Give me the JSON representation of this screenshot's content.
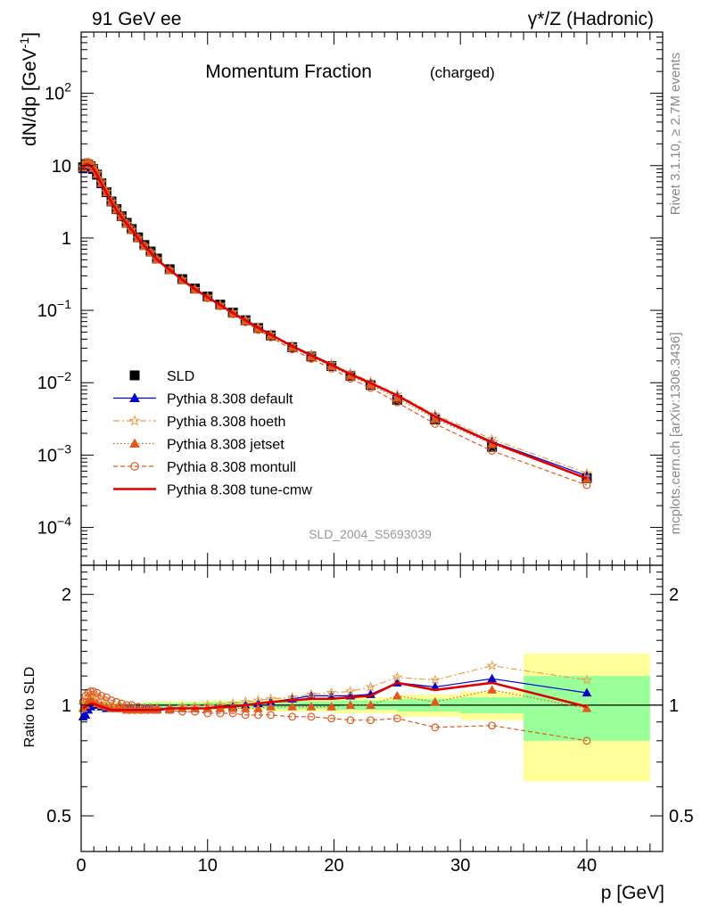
{
  "header": {
    "left": "91 GeV ee",
    "right": "γ*/Z (Hadronic)"
  },
  "side_labels": {
    "top": "Rivet 3.1.10, ≥ 2.7M events",
    "bottom": "mcplots.cern.ch [arXiv:1306.3436]"
  },
  "chart_data": {
    "type": "line",
    "title_main": "Momentum Fraction",
    "title_sub": "(charged)",
    "watermark": "SLD_2004_S5693039",
    "xlabel": "p [GeV]",
    "ylabel_main": "dN/dp [GeV",
    "ylabel_main_sup": "-1",
    "ylabel_main_close": "]",
    "ylabel_ratio": "Ratio to SLD",
    "xlim": [
      0,
      46
    ],
    "ylim_main": [
      3e-05,
      700
    ],
    "ylim_ratio": [
      0.4,
      2.4
    ],
    "ylog": true,
    "x_ticks": [
      "0",
      "10",
      "20",
      "30",
      "40"
    ],
    "y_ticks_main": [
      {
        "value": 0.0001,
        "base": "10",
        "exp": "−4"
      },
      {
        "value": 0.001,
        "base": "10",
        "exp": "−3"
      },
      {
        "value": 0.01,
        "base": "10",
        "exp": "−2"
      },
      {
        "value": 0.1,
        "base": "10",
        "exp": "−1"
      },
      {
        "value": 1,
        "base": "1",
        "exp": ""
      },
      {
        "value": 10,
        "base": "10",
        "exp": ""
      },
      {
        "value": 100,
        "base": "10",
        "exp": "2"
      }
    ],
    "y_ticks_ratio": [
      {
        "value": 0.5,
        "label": "0.5"
      },
      {
        "value": 1,
        "label": "1"
      },
      {
        "value": 2,
        "label": "2"
      }
    ],
    "x": [
      0.15,
      0.35,
      0.55,
      0.75,
      0.95,
      1.25,
      1.6,
      2.0,
      2.4,
      2.8,
      3.2,
      3.6,
      4.0,
      4.5,
      5.0,
      5.5,
      6.0,
      7.0,
      8.0,
      9.0,
      10.0,
      11.0,
      12.0,
      13.0,
      14.0,
      15.0,
      16.7,
      18.2,
      19.8,
      21.3,
      22.9,
      25.0,
      28.0,
      32.5,
      40.0
    ],
    "data": [
      9.5,
      10.5,
      10.4,
      9.8,
      9.0,
      7.5,
      5.7,
      4.3,
      3.2,
      2.5,
      2.0,
      1.62,
      1.33,
      1.02,
      0.8,
      0.65,
      0.52,
      0.37,
      0.27,
      0.2,
      0.155,
      0.12,
      0.093,
      0.073,
      0.057,
      0.045,
      0.031,
      0.023,
      0.017,
      0.0125,
      0.0093,
      0.0058,
      0.0031,
      0.0013,
      0.00048
    ],
    "band_x_edges": [
      0,
      5,
      10,
      15,
      20,
      25,
      30,
      35,
      45
    ],
    "band_stat": [
      0.01,
      0.015,
      0.02,
      0.025,
      0.03,
      0.04,
      0.05,
      0.2
    ],
    "band_total": [
      0.015,
      0.025,
      0.03,
      0.04,
      0.05,
      0.07,
      0.09,
      0.38
    ],
    "series": [
      {
        "name": "SLD",
        "color": "#000000",
        "style": "data"
      },
      {
        "name": "Pythia 8.308 default",
        "color": "#0000cc",
        "dash": "",
        "marker": "triangle",
        "fill": true,
        "ratio": [
          0.93,
          0.94,
          0.97,
          0.99,
          1.0,
          1.0,
          0.99,
          0.98,
          0.98,
          0.98,
          0.98,
          0.98,
          0.98,
          0.98,
          0.98,
          0.98,
          0.98,
          0.98,
          0.98,
          0.98,
          0.98,
          0.98,
          0.99,
          1.0,
          1.01,
          1.02,
          1.04,
          1.06,
          1.06,
          1.06,
          1.07,
          1.15,
          1.12,
          1.18,
          1.08
        ]
      },
      {
        "name": "Pythia 8.308 hoeth",
        "color": "#e8a050",
        "dash": "7,3,2,3",
        "marker": "star",
        "fill": false,
        "ratio": [
          1.0,
          1.03,
          1.05,
          1.06,
          1.06,
          1.05,
          1.03,
          1.01,
          0.99,
          0.98,
          0.98,
          0.97,
          0.97,
          0.97,
          0.97,
          0.97,
          0.98,
          0.98,
          0.99,
          0.99,
          1.0,
          1.0,
          1.01,
          1.02,
          1.03,
          1.04,
          1.05,
          1.07,
          1.08,
          1.09,
          1.12,
          1.19,
          1.17,
          1.28,
          1.17
        ]
      },
      {
        "name": "Pythia 8.308 jetset",
        "color": "#e05a20",
        "dash": "1.5,2.5",
        "marker": "triangle",
        "fill": true,
        "ratio": [
          0.98,
          1.0,
          1.02,
          1.03,
          1.02,
          1.01,
          1.0,
          0.99,
          0.98,
          0.98,
          0.98,
          0.97,
          0.97,
          0.97,
          0.97,
          0.97,
          0.97,
          0.97,
          0.98,
          0.98,
          0.98,
          0.98,
          0.98,
          0.98,
          0.98,
          0.99,
          0.99,
          0.99,
          0.99,
          1.0,
          1.0,
          1.06,
          1.02,
          1.1,
          0.98
        ]
      },
      {
        "name": "Pythia 8.308 montull",
        "color": "#e05a20",
        "dash": "5,3",
        "marker": "circle",
        "fill": false,
        "ratio": [
          1.02,
          1.06,
          1.08,
          1.09,
          1.09,
          1.08,
          1.06,
          1.05,
          1.03,
          1.02,
          1.01,
          1.0,
          1.0,
          0.99,
          0.98,
          0.98,
          0.97,
          0.97,
          0.96,
          0.96,
          0.95,
          0.95,
          0.95,
          0.94,
          0.94,
          0.94,
          0.93,
          0.93,
          0.92,
          0.91,
          0.91,
          0.92,
          0.87,
          0.88,
          0.8
        ]
      },
      {
        "name": "Pythia 8.308 tune-cmw",
        "color": "#dd0000",
        "dash": "",
        "marker": "none",
        "fill": false,
        "width": 2.6,
        "ratio": [
          0.98,
          0.99,
          1.0,
          1.01,
          1.01,
          1.0,
          0.99,
          0.98,
          0.97,
          0.97,
          0.97,
          0.97,
          0.97,
          0.97,
          0.97,
          0.97,
          0.97,
          0.98,
          0.98,
          0.98,
          0.98,
          0.99,
          0.99,
          1.0,
          1.01,
          1.02,
          1.03,
          1.04,
          1.04,
          1.05,
          1.06,
          1.15,
          1.1,
          1.15,
          0.99
        ]
      }
    ]
  }
}
